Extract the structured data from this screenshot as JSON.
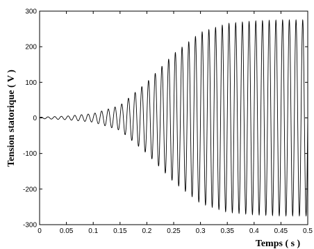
{
  "chart_data": {
    "type": "line",
    "title": "",
    "xlabel": "Temps ( s )",
    "ylabel": "Tension statorique ( V )",
    "xlim": [
      0,
      0.5
    ],
    "ylim": [
      -300,
      300
    ],
    "x_ticks": [
      0,
      0.05,
      0.1,
      0.15,
      0.2,
      0.25,
      0.3,
      0.35,
      0.4,
      0.45,
      0.5
    ],
    "x_tick_labels": [
      "0",
      "0.05",
      "0.1",
      "0.15",
      "0.2",
      "0.25",
      "0.3",
      "0.35",
      "0.4",
      "0.45",
      "0.5"
    ],
    "y_ticks": [
      -300,
      -200,
      -100,
      0,
      100,
      200,
      300
    ],
    "y_tick_labels": [
      "-300",
      "-200",
      "-100",
      "0",
      "100",
      "200",
      "300"
    ],
    "grid": false,
    "legend": "none",
    "line_color": "#000000",
    "series": [
      {
        "signal": "sinusoid",
        "frequency_hz": 80,
        "envelope": {
          "t": [
            0,
            0.05,
            0.1,
            0.15,
            0.2,
            0.25,
            0.3,
            0.35,
            0.4,
            0.45,
            0.5
          ],
          "amplitude": [
            2,
            5,
            12,
            35,
            100,
            180,
            240,
            265,
            272,
            275,
            275
          ]
        }
      }
    ]
  }
}
